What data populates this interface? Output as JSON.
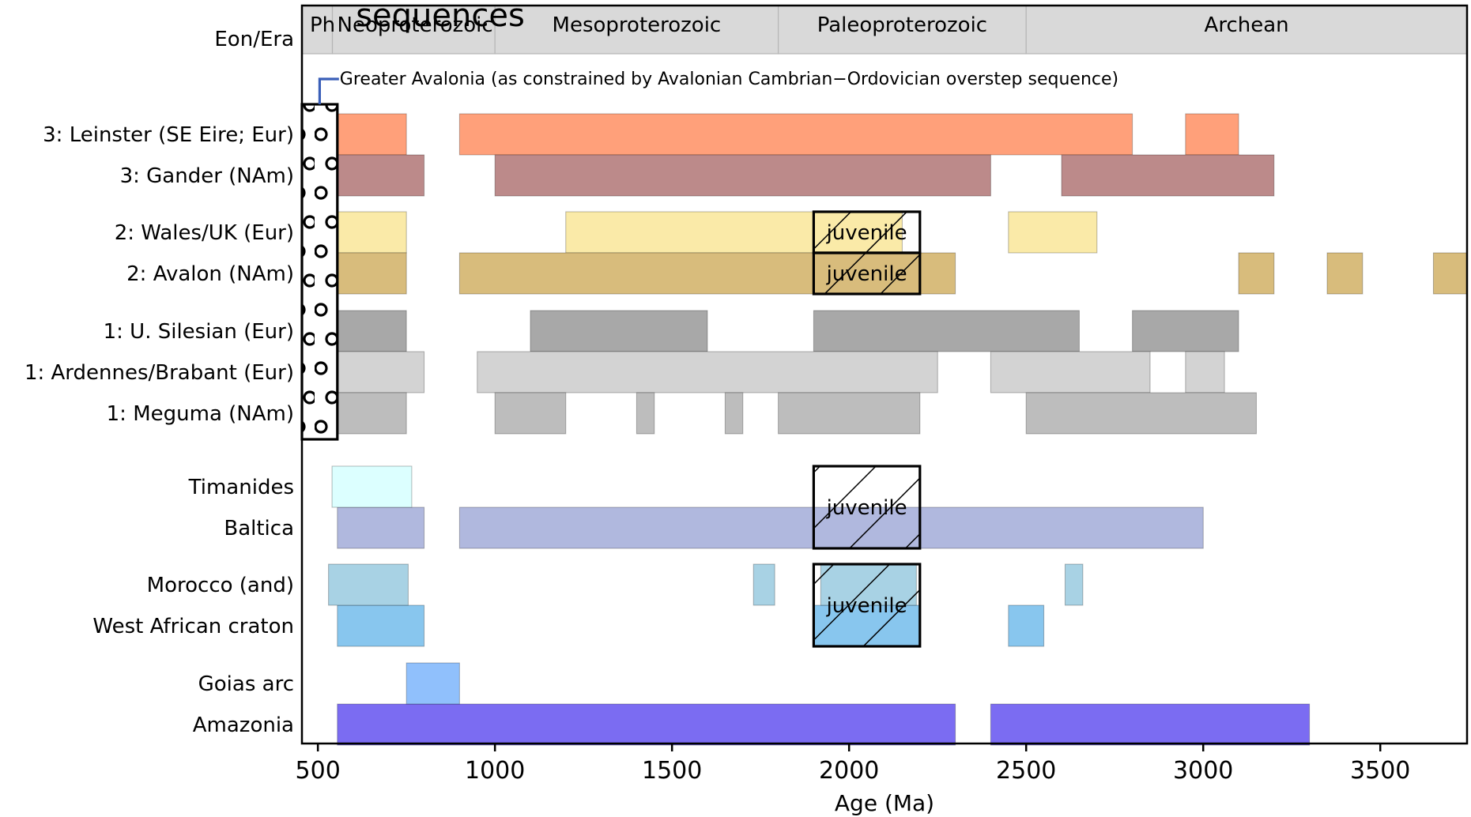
{
  "chart_data": {
    "type": "bar",
    "orientation": "horizontal-ranges",
    "title": "sequences",
    "xlabel": "Age (Ma)",
    "ylabel": "",
    "xlim": [
      455,
      3745
    ],
    "xticks": [
      500,
      1000,
      1500,
      2000,
      2500,
      3000,
      3500
    ],
    "grid": false,
    "eras": [
      {
        "label": "Ph",
        "start": 455,
        "end": 541
      },
      {
        "label": "Neoproterozoic",
        "start": 541,
        "end": 1000
      },
      {
        "label": "Mesoproterozoic",
        "start": 1000,
        "end": 1800
      },
      {
        "label": "Paleoproterozoic",
        "start": 1800,
        "end": 2500
      },
      {
        "label": "Archean",
        "start": 2500,
        "end": 3745
      }
    ],
    "eon_label": "Eon/Era",
    "avalonia_annotation": "Greater Avalonia (as constrained by Avalonian Cambrian−Ordovician overstep sequence)",
    "avalonia_box": {
      "start": 455,
      "end": 555
    },
    "rows": [
      {
        "label": "3: Leinster (SE Eire; Eur)",
        "color": "#ffa07a",
        "ranges": [
          [
            555,
            750
          ],
          [
            900,
            2800
          ],
          [
            2950,
            3100
          ]
        ]
      },
      {
        "label": "3: Gander (NAm)",
        "color": "#bc8a8a",
        "ranges": [
          [
            555,
            800
          ],
          [
            1000,
            2400
          ],
          [
            2600,
            3200
          ]
        ]
      },
      {
        "label": "2: Wales/UK (Eur)",
        "color": "#faeaa8",
        "ranges": [
          [
            555,
            750
          ],
          [
            1200,
            2150
          ],
          [
            2450,
            2700
          ]
        ]
      },
      {
        "label": "2: Avalon (NAm)",
        "color": "#d8bc7c",
        "ranges": [
          [
            555,
            750
          ],
          [
            900,
            2300
          ],
          [
            3100,
            3200
          ],
          [
            3350,
            3450
          ],
          [
            3650,
            3745
          ]
        ]
      },
      {
        "label": "1: U. Silesian (Eur)",
        "color": "#a8a8a8",
        "ranges": [
          [
            555,
            750
          ],
          [
            1100,
            1600
          ],
          [
            1900,
            2650
          ],
          [
            2800,
            3100
          ]
        ]
      },
      {
        "label": "1: Ardennes/Brabant (Eur)",
        "color": "#d3d3d3",
        "ranges": [
          [
            555,
            800
          ],
          [
            950,
            2250
          ],
          [
            2400,
            2850
          ],
          [
            2950,
            3060
          ]
        ]
      },
      {
        "label": "1: Meguma (NAm)",
        "color": "#bdbdbd",
        "ranges": [
          [
            555,
            750
          ],
          [
            1000,
            1200
          ],
          [
            1400,
            1450
          ],
          [
            1650,
            1700
          ],
          [
            1800,
            2200
          ],
          [
            2500,
            3150
          ]
        ]
      },
      {
        "label": "Timanides",
        "color": "#dcffff",
        "ranges": [
          [
            540,
            765
          ]
        ]
      },
      {
        "label": "Baltica",
        "color": "#b0b8de",
        "ranges": [
          [
            555,
            800
          ],
          [
            900,
            3000
          ]
        ]
      },
      {
        "label": "Morocco (and)",
        "color": "#a8d2e4",
        "ranges": [
          [
            530,
            755
          ],
          [
            1730,
            1790
          ],
          [
            1920,
            2190
          ],
          [
            2610,
            2660
          ]
        ]
      },
      {
        "label": "West African craton",
        "color": "#88c6ee",
        "ranges": [
          [
            555,
            800
          ],
          [
            1900,
            2200
          ],
          [
            2450,
            2550
          ]
        ]
      },
      {
        "label": "Goias arc",
        "color": "#90c0fc",
        "ranges": [
          [
            750,
            900
          ]
        ]
      },
      {
        "label": "Amazonia",
        "color": "#7b6cf2",
        "ranges": [
          [
            555,
            2300
          ],
          [
            2400,
            3300
          ]
        ]
      }
    ],
    "juvenile_label": "juvenile",
    "juvenile_boxes": [
      {
        "start": 1900,
        "end": 2200,
        "rows": [
          2
        ]
      },
      {
        "start": 1900,
        "end": 2200,
        "rows": [
          3
        ]
      },
      {
        "start": 1900,
        "end": 2200,
        "rows": [
          7,
          8
        ]
      },
      {
        "start": 1900,
        "end": 2200,
        "rows": [
          9,
          10
        ]
      }
    ]
  }
}
